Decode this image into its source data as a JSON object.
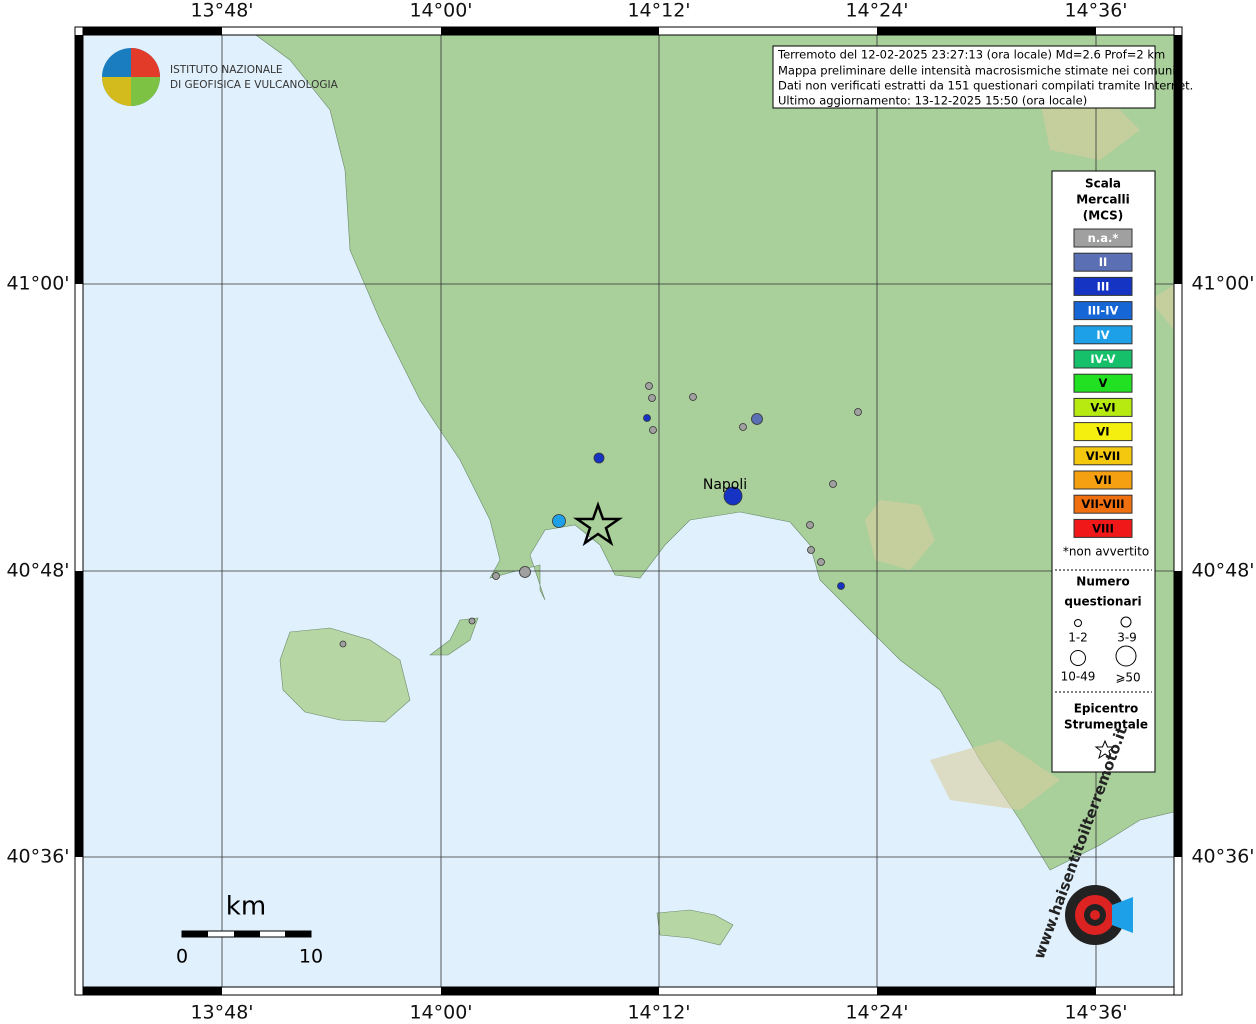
{
  "map": {
    "lon_labels": [
      "13°48'",
      "14°00'",
      "14°12'",
      "14°24'",
      "14°36'"
    ],
    "lat_labels": [
      "41°00'",
      "40°48'",
      "40°36'"
    ],
    "institute": [
      "ISTITUTO NAZIONALE",
      "DI GEOFISICA E VULCANOLOGIA"
    ],
    "info": [
      "Terremoto del 12-02-2025 23:27:13 (ora locale) Md=2.6 Prof=2 km",
      "Mappa preliminare delle intensità macrosismiche stimate nei comuni",
      "Dati non verificati estratti da 151 questionari compilati tramite Internet.",
      "Ultimo aggiornamento: 13-12-2025 15:50 (ora locale)"
    ],
    "city": "Napoli",
    "scale_bar": {
      "unit": "km",
      "start": "0",
      "end": "10"
    },
    "legend": {
      "title": [
        "Scala",
        "Mercalli",
        "(MCS)"
      ],
      "classes": [
        {
          "label": "n.a.*",
          "color": "#a0a0a0"
        },
        {
          "label": "II",
          "color": "#5a6fb4"
        },
        {
          "label": "III",
          "color": "#1534c4"
        },
        {
          "label": "III-IV",
          "color": "#1766d6"
        },
        {
          "label": "IV",
          "color": "#1ea0e8"
        },
        {
          "label": "IV-V",
          "color": "#16c06a"
        },
        {
          "label": "V",
          "color": "#22e022"
        },
        {
          "label": "V-VI",
          "color": "#b6ea10"
        },
        {
          "label": "VI",
          "color": "#f5ef10"
        },
        {
          "label": "VI-VII",
          "color": "#f5c810"
        },
        {
          "label": "VII",
          "color": "#f5a010"
        },
        {
          "label": "VII-VIII",
          "color": "#f07010"
        },
        {
          "label": "VIII",
          "color": "#f01818"
        }
      ],
      "note": "*non avvertito",
      "count_title": [
        "Numero",
        "questionari"
      ],
      "sizes": [
        "1-2",
        "3-9",
        "10-49",
        "⩾50"
      ],
      "epicenter": [
        "Epicentro",
        "Strumentale"
      ]
    },
    "site": "www.haisentitoilterremoto.it"
  }
}
